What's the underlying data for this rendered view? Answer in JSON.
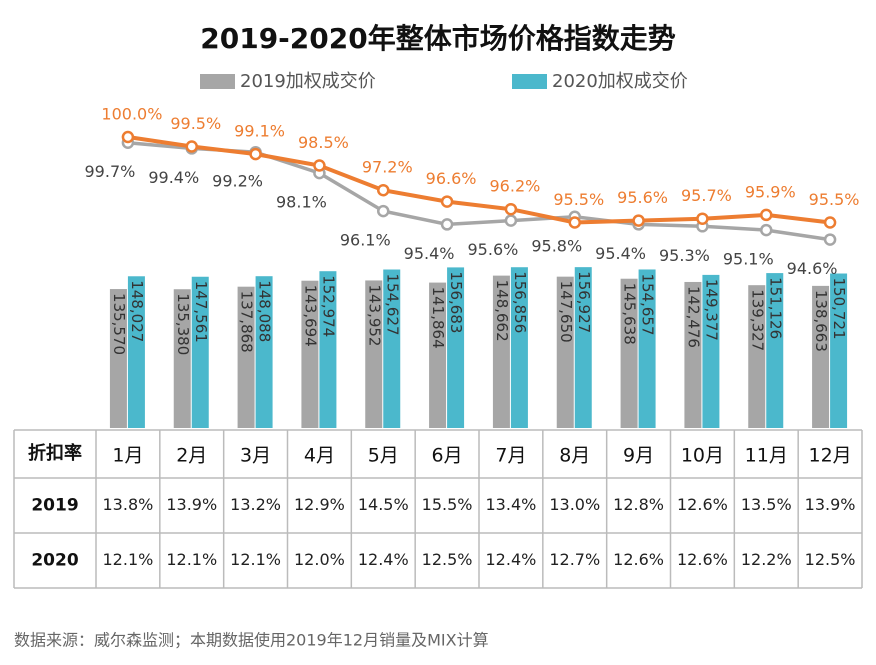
{
  "chart_data": {
    "type": "bar_line_table",
    "title": "2019-2020年整体市场价格指数走势",
    "categories": [
      "1月",
      "2月",
      "3月",
      "4月",
      "5月",
      "6月",
      "7月",
      "8月",
      "9月",
      "10月",
      "11月",
      "12月"
    ],
    "series": [
      {
        "name": "2019加权成交价",
        "color": "#a6a6a6",
        "values": [
          135570,
          135380,
          137868,
          143694,
          143952,
          141864,
          148662,
          147650,
          145638,
          142476,
          139327,
          138663
        ],
        "value_labels": [
          "135,570",
          "135,380",
          "137,868",
          "143,694",
          "143,952",
          "141,864",
          "148,662",
          "147,650",
          "145,638",
          "142,476",
          "139,327",
          "138,663"
        ]
      },
      {
        "name": "2020加权成交价",
        "color": "#4bb8cc",
        "values": [
          148027,
          147561,
          148088,
          152974,
          154627,
          156683,
          156856,
          156927,
          154657,
          149377,
          151126,
          150721
        ],
        "value_labels": [
          "148,027",
          "147,561",
          "148,088",
          "152,974",
          "154,627",
          "156,683",
          "156,856",
          "156,927",
          "154,657",
          "149,377",
          "151,126",
          "150,721"
        ]
      }
    ],
    "ylim": [
      0,
      160000
    ],
    "line_series": [
      {
        "color": "#a6a6a6",
        "axis": "y2",
        "values": [
          99.7,
          99.4,
          99.2,
          98.1,
          96.1,
          95.4,
          95.6,
          95.8,
          95.4,
          95.3,
          95.1,
          94.6
        ],
        "value_labels": [
          "99.7%",
          "99.4%",
          "99.2%",
          "98.1%",
          "96.1%",
          "95.4%",
          "95.6%",
          "95.8%",
          "95.4%",
          "95.3%",
          "95.1%",
          "94.6%"
        ]
      },
      {
        "color": "#ed7d31",
        "axis": "y2",
        "values": [
          100.0,
          99.5,
          99.1,
          98.5,
          97.2,
          96.6,
          96.2,
          95.5,
          95.6,
          95.7,
          95.9,
          95.5
        ],
        "value_labels": [
          "100.0%",
          "99.5%",
          "99.1%",
          "98.5%",
          "97.2%",
          "96.6%",
          "96.2%",
          "95.5%",
          "95.6%",
          "95.7%",
          "95.9%",
          "95.5%"
        ]
      }
    ],
    "y2lim": [
      93,
      101
    ],
    "table": {
      "header": "折扣率",
      "rows": [
        {
          "label": "2019",
          "values": [
            "13.8%",
            "13.9%",
            "13.2%",
            "12.9%",
            "14.5%",
            "15.5%",
            "13.4%",
            "13.0%",
            "12.8%",
            "12.6%",
            "13.5%",
            "13.9%"
          ]
        },
        {
          "label": "2020",
          "values": [
            "12.1%",
            "12.1%",
            "12.1%",
            "12.0%",
            "12.4%",
            "12.5%",
            "12.4%",
            "12.7%",
            "12.6%",
            "12.6%",
            "12.2%",
            "12.5%"
          ]
        }
      ]
    },
    "footnote": "数据来源：威尔森监测；本期数据使用2019年12月销量及MIX计算"
  }
}
